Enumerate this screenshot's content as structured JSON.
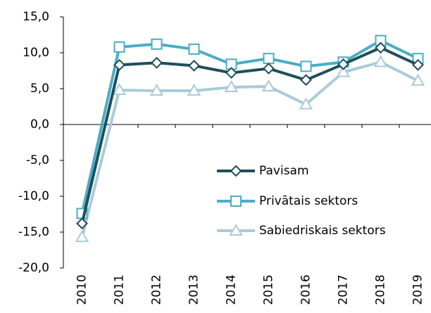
{
  "chart_data": {
    "type": "line",
    "categories": [
      "2010",
      "2011",
      "2012",
      "2013",
      "2014",
      "2015",
      "2016",
      "2017",
      "2018",
      "2019"
    ],
    "series": [
      {
        "name": "Pavisam",
        "color": "#1f4e5a",
        "marker": "diamond",
        "values": [
          -13.8,
          8.3,
          8.6,
          8.2,
          7.2,
          7.8,
          6.2,
          8.4,
          10.7,
          8.3
        ]
      },
      {
        "name": "Privātais sektors",
        "color": "#4bacc6",
        "marker": "square",
        "values": [
          -12.4,
          10.8,
          11.2,
          10.5,
          8.4,
          9.2,
          8.1,
          8.7,
          11.7,
          9.2
        ]
      },
      {
        "name": "Sabiedriskais sektors",
        "color": "#a9cbdb",
        "marker": "triangle",
        "values": [
          -15.7,
          4.8,
          4.7,
          4.7,
          5.2,
          5.3,
          2.8,
          7.3,
          8.7,
          6.1
        ]
      }
    ],
    "ylim": [
      -20,
      15
    ],
    "yticks": [
      {
        "value": -20,
        "label": "-20,0"
      },
      {
        "value": -15,
        "label": "-15,0"
      },
      {
        "value": -10,
        "label": "-10,0"
      },
      {
        "value": -5,
        "label": "-5,0"
      },
      {
        "value": 0,
        "label": "0,0"
      },
      {
        "value": 5,
        "label": "5,0"
      },
      {
        "value": 10,
        "label": "10,0"
      },
      {
        "value": 15,
        "label": "15,0"
      }
    ]
  }
}
